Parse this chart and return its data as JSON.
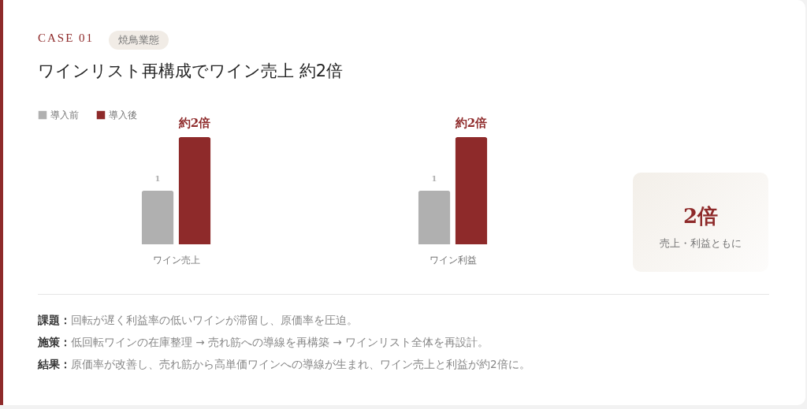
{
  "chart_data": {
    "type": "bar",
    "title": "ワインリスト再構成でワイン売上 約2倍",
    "categories": [
      "ワイン売上",
      "ワイン利益"
    ],
    "series": [
      {
        "name": "導入前",
        "color": "#b0b0b0",
        "values": [
          1,
          1
        ],
        "value_labels": [
          "1",
          "1"
        ]
      },
      {
        "name": "導入後",
        "color": "#8e2a2a",
        "values": [
          2,
          2
        ],
        "value_labels": [
          "約2倍",
          "約2倍"
        ]
      }
    ],
    "legend": "top left",
    "annotations": [
      "CASE 01",
      "焼鳥業態",
      "2倍",
      "売上・利益ともに",
      "課題：回転が遅く利益率の低いワインが滞留し、原価率を圧迫。",
      "施策：低回転ワインの在庫整理 → 売れ筋への導線を再構築 → ワインリスト全体を再設計。",
      "結果：原価率が改善し、売れ筋から高単価ワインへの導線が生まれ、ワイン売上と利益が約2倍に。"
    ]
  }
}
